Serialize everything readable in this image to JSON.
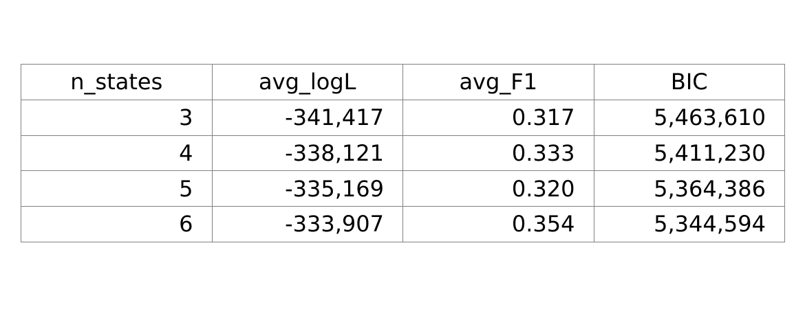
{
  "chart_data": {
    "type": "table",
    "columns": [
      "n_states",
      "avg_logL",
      "avg_F1",
      "BIC"
    ],
    "rows": [
      [
        "3",
        "-341,417",
        "0.317",
        "5,463,610"
      ],
      [
        "4",
        "-338,121",
        "0.333",
        "5,411,230"
      ],
      [
        "5",
        "-335,169",
        "0.320",
        "5,364,386"
      ],
      [
        "6",
        "-333,907",
        "0.354",
        "5,344,594"
      ]
    ],
    "grid": true,
    "border_color": "#808080"
  }
}
